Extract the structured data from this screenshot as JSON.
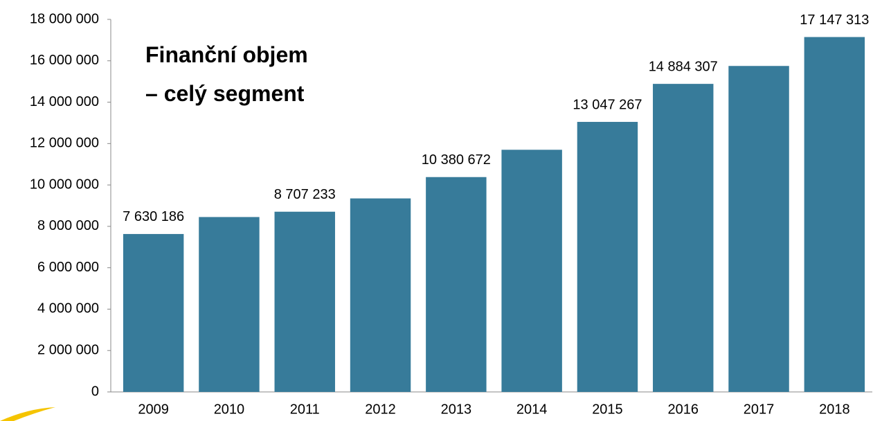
{
  "chart_data": {
    "type": "bar",
    "title": [
      "Finanční objem",
      "– celý segment"
    ],
    "categories": [
      "2009",
      "2010",
      "2011",
      "2012",
      "2013",
      "2014",
      "2015",
      "2016",
      "2017",
      "2018"
    ],
    "values": [
      7630186,
      8450000,
      8707233,
      9350000,
      10380672,
      11700000,
      13047267,
      14884307,
      15750000,
      17147313
    ],
    "value_labels": [
      "7 630 186",
      null,
      "8 707 233",
      null,
      "10 380 672",
      null,
      "13 047 267",
      "14 884 307",
      null,
      "17 147 313"
    ],
    "color": "#377b9a",
    "ylim": [
      0,
      18000000
    ],
    "yticks": [
      0,
      {
        "value": 2000000,
        "label": "2 000 000"
      },
      {
        "value": 4000000,
        "label": "4 000 000"
      },
      {
        "value": 6000000,
        "label": "6 000 000"
      },
      {
        "value": 8000000,
        "label": "8 000 000"
      },
      {
        "value": 10000000,
        "label": "10 000 000"
      },
      {
        "value": 12000000,
        "label": "12 000 000"
      },
      {
        "value": 14000000,
        "label": "14 000 000"
      },
      {
        "value": 16000000,
        "label": "16 000 000"
      },
      {
        "value": 18000000,
        "label": "18 000 000"
      }
    ],
    "grid": false
  }
}
